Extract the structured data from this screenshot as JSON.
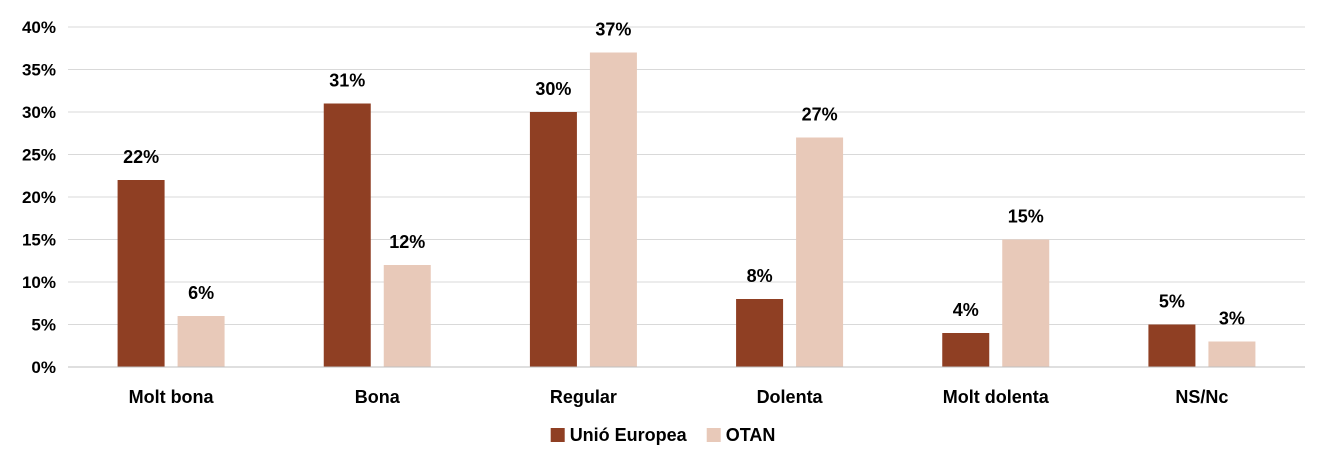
{
  "chart_data": {
    "type": "bar",
    "categories": [
      "Molt bona",
      "Bona",
      "Regular",
      "Dolenta",
      "Molt dolenta",
      "NS/Nc"
    ],
    "series": [
      {
        "name": "Unió Europea",
        "values": [
          22,
          31,
          30,
          8,
          4,
          5
        ],
        "color": "#8f3f23"
      },
      {
        "name": "OTAN",
        "values": [
          6,
          12,
          37,
          27,
          15,
          3
        ],
        "color": "#e8c9b9"
      }
    ],
    "ylim": [
      0,
      40
    ],
    "yticks": [
      0,
      5,
      10,
      15,
      20,
      25,
      30,
      35,
      40
    ],
    "ytick_suffix": "%",
    "data_label_suffix": "%",
    "grid": true,
    "legend_position": "bottom-center"
  }
}
